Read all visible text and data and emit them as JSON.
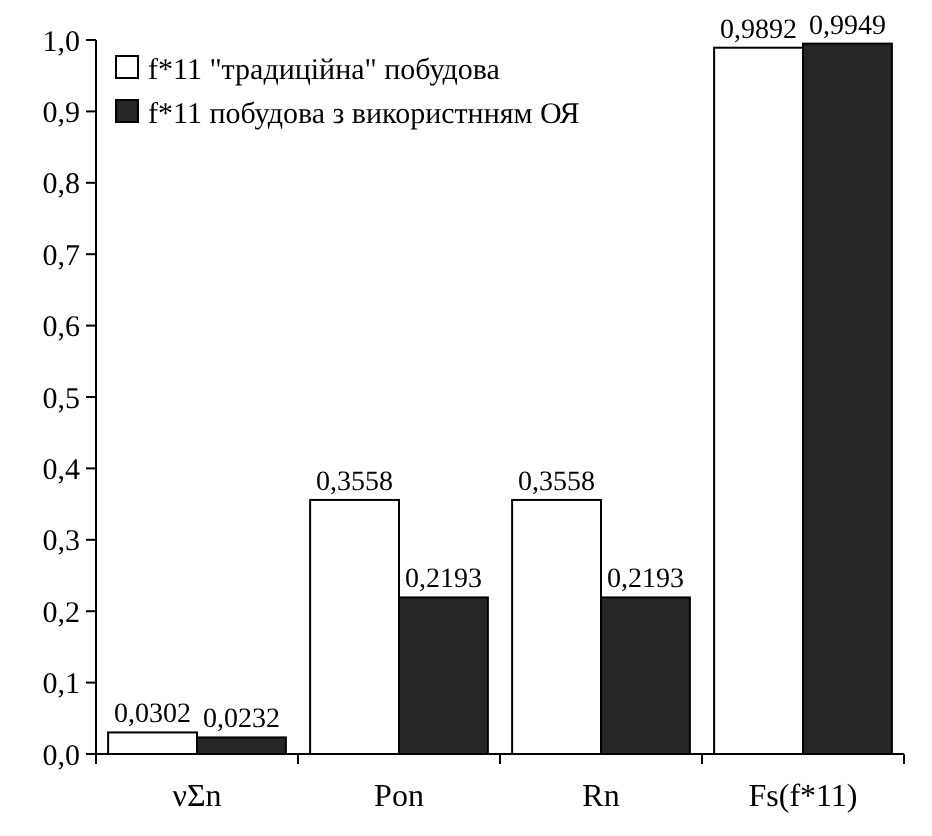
{
  "chart_data": {
    "type": "bar",
    "categories": [
      "νΣn",
      "Pon",
      "Rn",
      "Fs(f*11)"
    ],
    "series": [
      {
        "name": "f*11 \"традиційна\"  побудова",
        "color": "#ffffff",
        "values": [
          0.0302,
          0.3558,
          0.3558,
          0.9892
        ],
        "value_labels": [
          "0,0302",
          "0,3558",
          "0,3558",
          "0,9892"
        ]
      },
      {
        "name": "f*11 побудова з використнням ОЯ",
        "color": "#262626",
        "values": [
          0.0232,
          0.2193,
          0.2193,
          0.9949
        ],
        "value_labels": [
          "0,0232",
          "0,2193",
          "0,2193",
          "0,9949"
        ]
      }
    ],
    "ylim": [
      0,
      1
    ],
    "yticks": [
      {
        "value": 0,
        "label": "0,0"
      },
      {
        "value": 0.1,
        "label": "0,1"
      },
      {
        "value": 0.2,
        "label": "0,2"
      },
      {
        "value": 0.3,
        "label": "0,3"
      },
      {
        "value": 0.4,
        "label": "0,4"
      },
      {
        "value": 0.5,
        "label": "0,5"
      },
      {
        "value": 0.6,
        "label": "0,6"
      },
      {
        "value": 0.7,
        "label": "0,7"
      },
      {
        "value": 0.8,
        "label": "0,8"
      },
      {
        "value": 0.9,
        "label": "0,9"
      },
      {
        "value": 1,
        "label": "1,0"
      }
    ],
    "legend": "top left",
    "grid": false
  }
}
